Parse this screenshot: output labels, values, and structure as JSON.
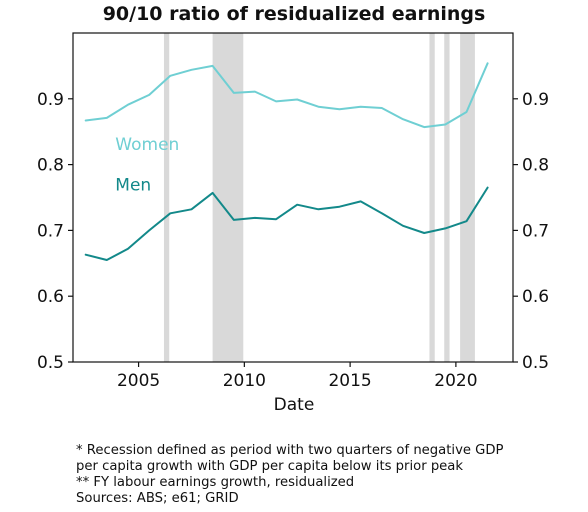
{
  "chart_data": {
    "type": "line",
    "title": "90/10 ratio of residualized earnings",
    "xlabel": "Date",
    "ylabel": "",
    "xlim": [
      2001.9,
      2022.7
    ],
    "ylim": [
      0.5,
      1.0
    ],
    "x_ticks": [
      2005,
      2010,
      2015,
      2020
    ],
    "y_ticks": [
      0.5,
      0.6,
      0.7,
      0.8,
      0.9
    ],
    "y_tick_labels": [
      "0.5",
      "0.6",
      "0.7",
      "0.8",
      "0.9"
    ],
    "x_tick_labels": [
      "2005",
      "2010",
      "2015",
      "2020"
    ],
    "right_axis_mirror": true,
    "grid": false,
    "recession_bands": [
      [
        2006.2,
        2006.45
      ],
      [
        2008.5,
        2009.95
      ],
      [
        2018.75,
        2019.0
      ],
      [
        2019.45,
        2019.7
      ],
      [
        2020.2,
        2020.9
      ]
    ],
    "series": [
      {
        "name": "Women",
        "color": "#6fcfd3",
        "x": [
          2002.5,
          2003.5,
          2004.5,
          2005.5,
          2006.5,
          2007.5,
          2008.5,
          2009.5,
          2010.5,
          2011.5,
          2012.5,
          2013.5,
          2014.5,
          2015.5,
          2016.5,
          2017.5,
          2018.5,
          2019.5,
          2020.5,
          2021.5
        ],
        "values": [
          0.867,
          0.871,
          0.891,
          0.906,
          0.935,
          0.944,
          0.95,
          0.909,
          0.911,
          0.896,
          0.899,
          0.888,
          0.884,
          0.888,
          0.886,
          0.869,
          0.857,
          0.861,
          0.88,
          0.954
        ]
      },
      {
        "name": "Men",
        "color": "#13898a",
        "x": [
          2002.5,
          2003.5,
          2004.5,
          2005.5,
          2006.5,
          2007.5,
          2008.5,
          2009.5,
          2010.5,
          2011.5,
          2012.5,
          2013.5,
          2014.5,
          2015.5,
          2016.5,
          2017.5,
          2018.5,
          2019.5,
          2020.5,
          2021.5
        ],
        "values": [
          0.663,
          0.655,
          0.672,
          0.7,
          0.726,
          0.732,
          0.757,
          0.716,
          0.719,
          0.717,
          0.739,
          0.732,
          0.736,
          0.744,
          0.726,
          0.707,
          0.696,
          0.703,
          0.714,
          0.765
        ]
      }
    ],
    "series_labels": [
      {
        "text": "Women",
        "color": "#6fcfd3",
        "x": 2003.9,
        "y": 0.822
      },
      {
        "text": "Men",
        "color": "#13898a",
        "x": 2003.9,
        "y": 0.761
      }
    ]
  },
  "notes": {
    "line1": "* Recession defined as period with two quarters of negative GDP",
    "line2": "per capita growth with GDP per capita below its prior peak",
    "line3": "** FY labour earnings growth, residualized",
    "line4": "Sources: ABS; e61; GRID"
  }
}
